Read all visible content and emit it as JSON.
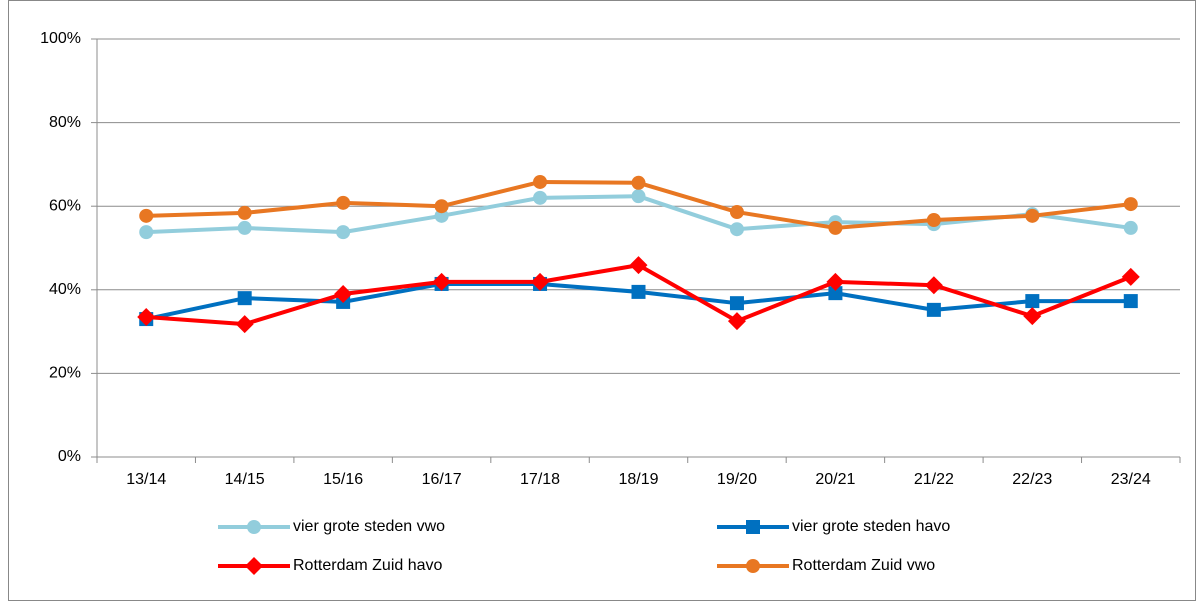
{
  "chart_data": {
    "type": "line",
    "categories": [
      "13/14",
      "14/15",
      "15/16",
      "16/17",
      "17/18",
      "18/19",
      "19/20",
      "20/21",
      "21/22",
      "22/23",
      "23/24"
    ],
    "series": [
      {
        "name": "vier grote steden vwo",
        "color": "#92cddc",
        "marker": "circle",
        "values": [
          53.8,
          54.8,
          53.8,
          57.7,
          62.0,
          62.4,
          54.5,
          56.2,
          55.7,
          58.1,
          54.8
        ]
      },
      {
        "name": "vier grote steden havo",
        "color": "#0070c0",
        "marker": "square",
        "values": [
          33.0,
          38.0,
          37.1,
          41.4,
          41.4,
          39.5,
          36.8,
          39.2,
          35.2,
          37.3,
          37.3
        ]
      },
      {
        "name": "Rotterdam Zuid havo",
        "color": "#ff0000",
        "marker": "diamond",
        "values": [
          33.5,
          31.8,
          39.0,
          41.9,
          41.9,
          45.9,
          32.5,
          41.9,
          41.1,
          33.7,
          43.1
        ]
      },
      {
        "name": "Rotterdam Zuid vwo",
        "color": "#e87722",
        "marker": "circle",
        "values": [
          57.7,
          58.4,
          60.8,
          60.0,
          65.8,
          65.6,
          58.6,
          54.8,
          56.7,
          57.7,
          60.5
        ]
      }
    ],
    "ylim": [
      0,
      100
    ],
    "yticks": [
      {
        "value": 0,
        "label": "0%"
      },
      {
        "value": 20,
        "label": "20%"
      },
      {
        "value": 40,
        "label": "40%"
      },
      {
        "value": 60,
        "label": "60%"
      },
      {
        "value": 80,
        "label": "80%"
      },
      {
        "value": 100,
        "label": "100%"
      }
    ],
    "grid": true,
    "legend": "bottom"
  }
}
